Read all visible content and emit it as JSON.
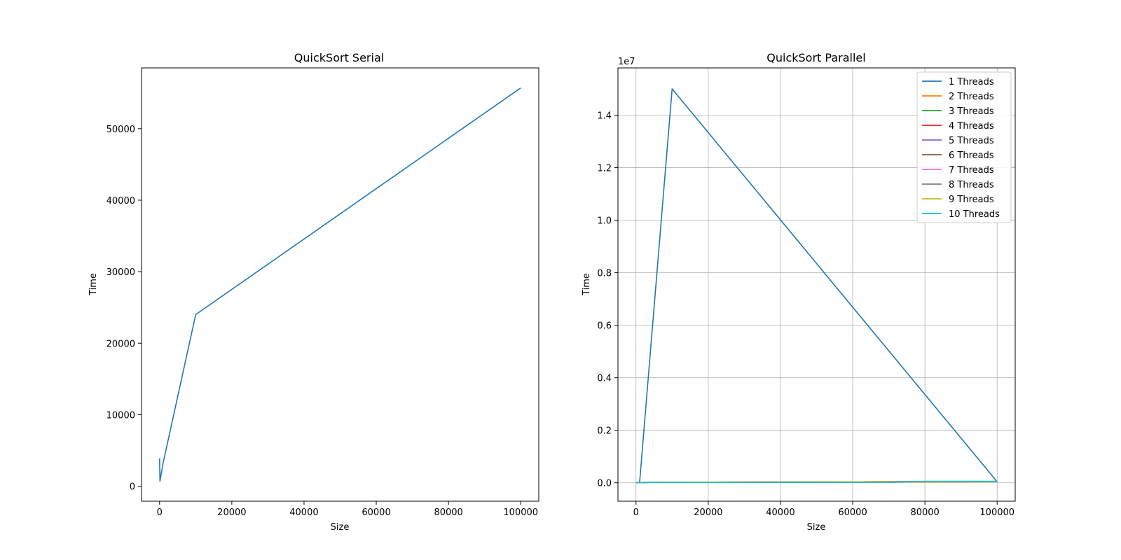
{
  "chart_data": [
    {
      "type": "line",
      "title": "QuickSort Serial",
      "xlabel": "Size",
      "ylabel": "Time",
      "xlim": [
        -5000,
        105000
      ],
      "ylim": [
        -2100,
        58500
      ],
      "xticks": [
        0,
        20000,
        40000,
        60000,
        80000,
        100000
      ],
      "yticks": [
        0,
        10000,
        20000,
        30000,
        40000,
        50000
      ],
      "grid": false,
      "series": [
        {
          "color": "#1f77b4",
          "x": [
            10,
            100,
            1000,
            10000,
            100000
          ],
          "y": [
            3900,
            700,
            3300,
            24000,
            55700
          ]
        }
      ]
    },
    {
      "type": "line",
      "title": "QuickSort Parallel",
      "xlabel": "Size",
      "ylabel": "Time",
      "offset_label": "1e7",
      "xlim": [
        -5000,
        105000
      ],
      "ylim": [
        -0.07,
        1.58
      ],
      "xticks": [
        0,
        20000,
        40000,
        60000,
        80000,
        100000
      ],
      "yticks": [
        0.0,
        0.2,
        0.4,
        0.6,
        0.8,
        1.0,
        1.2,
        1.4
      ],
      "ytick_labels": [
        "0.0",
        "0.2",
        "0.4",
        "0.6",
        "0.8",
        "1.0",
        "1.2",
        "1.4"
      ],
      "grid": true,
      "legend_position": "top-right",
      "series": [
        {
          "name": "1 Threads",
          "color": "#1f77b4",
          "x": [
            10,
            100,
            1000,
            10000,
            100000
          ],
          "y": [
            0.001,
            0.001,
            0.002,
            1.5,
            0.004
          ]
        },
        {
          "name": "2 Threads",
          "color": "#ff7f0e",
          "x": [
            10,
            100,
            1000,
            10000,
            100000
          ],
          "y": [
            0.001,
            0.001,
            0.001,
            0.002,
            0.004
          ]
        },
        {
          "name": "3 Threads",
          "color": "#2ca02c",
          "x": [
            10,
            100,
            1000,
            10000,
            100000
          ],
          "y": [
            0.001,
            0.001,
            0.001,
            0.002,
            0.005
          ]
        },
        {
          "name": "4 Threads",
          "color": "#d62728",
          "x": [
            10,
            100,
            1000,
            10000,
            100000
          ],
          "y": [
            0.001,
            0.001,
            0.001,
            0.002,
            0.005
          ]
        },
        {
          "name": "5 Threads",
          "color": "#9467bd",
          "x": [
            10,
            100,
            1000,
            10000,
            100000
          ],
          "y": [
            0.001,
            0.001,
            0.001,
            0.002,
            0.005
          ]
        },
        {
          "name": "6 Threads",
          "color": "#8c564b",
          "x": [
            10,
            100,
            1000,
            10000,
            100000
          ],
          "y": [
            0.001,
            0.001,
            0.001,
            0.002,
            0.005
          ]
        },
        {
          "name": "7 Threads",
          "color": "#e377c2",
          "x": [
            10,
            100,
            1000,
            10000,
            100000
          ],
          "y": [
            0.001,
            0.001,
            0.001,
            0.002,
            0.005
          ]
        },
        {
          "name": "8 Threads",
          "color": "#7f7f7f",
          "x": [
            10,
            100,
            1000,
            10000,
            100000
          ],
          "y": [
            0.001,
            0.001,
            0.001,
            0.002,
            0.005
          ]
        },
        {
          "name": "9 Threads",
          "color": "#bcbd22",
          "x": [
            10,
            100,
            1000,
            10000,
            100000
          ],
          "y": [
            0.001,
            0.001,
            0.001,
            0.002,
            0.005
          ]
        },
        {
          "name": "10 Threads",
          "color": "#17becf",
          "x": [
            10,
            100,
            1000,
            10000,
            70000,
            80000,
            100000
          ],
          "y": [
            0.001,
            0.001,
            0.001,
            0.001,
            0.002,
            0.006,
            0.006
          ]
        }
      ]
    }
  ]
}
